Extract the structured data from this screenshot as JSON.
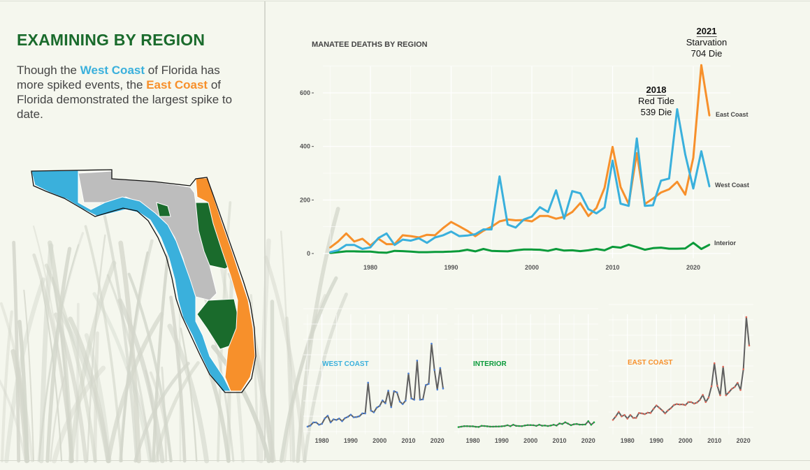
{
  "left_panel": {
    "heading": "EXAMINING BY REGION",
    "intro": {
      "part1": "Though the ",
      "west": "West Coast",
      "part2": " of Florida has more spiked events, the ",
      "east": "East Coast",
      "part3": " of Florida demonstrated the largest spike to date."
    }
  },
  "colors": {
    "west": "#3ab0dc",
    "east": "#f7902b",
    "interior": "#0a9a3a",
    "north": "#bdbdbd",
    "green_dark": "#1a6b2c"
  },
  "chart_data": [
    {
      "type": "line",
      "title": "MANATEE DEATHS BY REGION",
      "xlabel": "",
      "ylabel": "",
      "x": [
        1975,
        1976,
        1977,
        1978,
        1979,
        1980,
        1981,
        1982,
        1983,
        1984,
        1985,
        1986,
        1987,
        1988,
        1989,
        1990,
        1991,
        1992,
        1993,
        1994,
        1995,
        1996,
        1997,
        1998,
        1999,
        2000,
        2001,
        2002,
        2003,
        2004,
        2005,
        2006,
        2007,
        2008,
        2009,
        2010,
        2011,
        2012,
        2013,
        2014,
        2015,
        2016,
        2017,
        2018,
        2019,
        2020,
        2021,
        2022
      ],
      "xticks": [
        "1980",
        "1990",
        "2000",
        "2010",
        "2020"
      ],
      "yticks": [
        "0",
        "200",
        "400",
        "600"
      ],
      "ylim": [
        0,
        720
      ],
      "xlim": [
        1973.5,
        2024.5
      ],
      "grid": true,
      "series": [
        {
          "name": "East Coast",
          "color": "#f7902b",
          "values": [
            22,
            45,
            75,
            45,
            55,
            30,
            55,
            35,
            35,
            68,
            65,
            60,
            70,
            68,
            95,
            118,
            102,
            85,
            65,
            85,
            100,
            120,
            127,
            124,
            125,
            120,
            140,
            140,
            130,
            137,
            155,
            188,
            140,
            170,
            245,
            398,
            248,
            185,
            375,
            185,
            205,
            228,
            240,
            268,
            220,
            358,
            704,
            515
          ]
        },
        {
          "name": "West Coast",
          "color": "#3ab0dc",
          "values": [
            5,
            12,
            32,
            32,
            17,
            23,
            58,
            75,
            32,
            52,
            48,
            57,
            40,
            60,
            68,
            82,
            65,
            67,
            72,
            90,
            90,
            288,
            108,
            97,
            127,
            138,
            173,
            155,
            236,
            130,
            233,
            225,
            166,
            150,
            172,
            347,
            186,
            178,
            430,
            178,
            180,
            272,
            280,
            539,
            370,
            243,
            382,
            250
          ]
        },
        {
          "name": "Interior",
          "color": "#0a9a3a",
          "values": [
            2,
            5,
            8,
            8,
            7,
            7,
            4,
            3,
            10,
            9,
            7,
            5,
            5,
            6,
            6,
            7,
            9,
            14,
            8,
            17,
            10,
            9,
            8,
            12,
            15,
            15,
            14,
            10,
            17,
            11,
            12,
            9,
            12,
            17,
            12,
            25,
            22,
            33,
            24,
            14,
            20,
            22,
            18,
            18,
            19,
            40,
            17,
            33
          ]
        }
      ],
      "annotations": [
        {
          "year": "2018",
          "event": "Red Tide",
          "count": "539 Die"
        },
        {
          "year": "2021",
          "event": "Starvation",
          "count": "704 Die"
        }
      ]
    },
    {
      "type": "line",
      "title": "WEST COAST",
      "series_ref": "West Coast",
      "xticks": [
        "1980",
        "1990",
        "2000",
        "2010",
        "2020"
      ]
    },
    {
      "type": "line",
      "title": "INTERIOR",
      "series_ref": "Interior",
      "xticks": [
        "1980",
        "1990",
        "2000",
        "2010",
        "2020"
      ]
    },
    {
      "type": "line",
      "title": "EAST COAST",
      "series_ref": "East Coast",
      "xticks": [
        "1980",
        "1990",
        "2000",
        "2010",
        "2020"
      ]
    }
  ]
}
